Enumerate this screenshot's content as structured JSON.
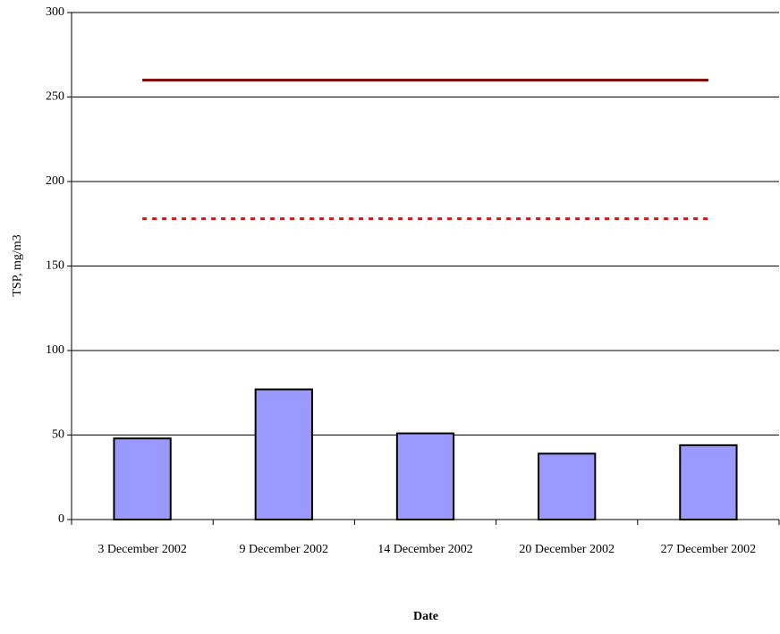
{
  "chart_data": {
    "type": "bar",
    "categories": [
      "3 December 2002",
      "9 December 2002",
      "14 December 2002",
      "20 December 2002",
      "27 December 2002"
    ],
    "series": [
      {
        "type": "bar",
        "color": "#9999ff",
        "values": [
          48,
          77,
          51,
          39,
          44
        ]
      },
      {
        "type": "line",
        "color": "#800000",
        "style": "solid",
        "values": [
          260,
          260,
          260,
          260,
          260
        ]
      },
      {
        "type": "line",
        "color": "#ff0000",
        "style": "dotted",
        "values": [
          178,
          178,
          178,
          178,
          178
        ]
      }
    ],
    "ylim": [
      0,
      300
    ],
    "yticks": [
      0,
      50,
      100,
      150,
      200,
      250,
      300
    ],
    "grid": true,
    "ylabel": "TSP, mg/m3",
    "xlabel": "Date"
  }
}
